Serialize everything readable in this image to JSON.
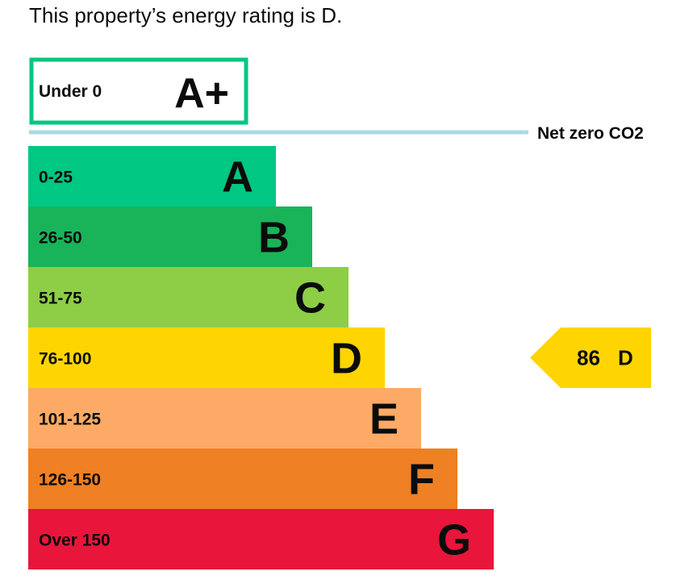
{
  "heading": "This property’s energy rating is D.",
  "chart_data": {
    "type": "bar",
    "title": "",
    "bands": [
      {
        "letter": "A+",
        "range": "Under 0",
        "color": "#00c781",
        "style": "outline"
      },
      {
        "letter": "A",
        "range": "0-25",
        "color": "#00c781"
      },
      {
        "letter": "B",
        "range": "26-50",
        "color": "#19b459"
      },
      {
        "letter": "C",
        "range": "51-75",
        "color": "#8dce46"
      },
      {
        "letter": "D",
        "range": "76-100",
        "color": "#ffd500"
      },
      {
        "letter": "E",
        "range": "101-125",
        "color": "#fcaa65"
      },
      {
        "letter": "F",
        "range": "126-150",
        "color": "#ef8023"
      },
      {
        "letter": "G",
        "range": "Over 150",
        "color": "#e9153b"
      }
    ],
    "net_zero_line": {
      "label": "Net zero CO2",
      "color": "#add8e6"
    },
    "current_rating": {
      "score": "86",
      "letter": "D",
      "color": "#ffd500"
    }
  }
}
